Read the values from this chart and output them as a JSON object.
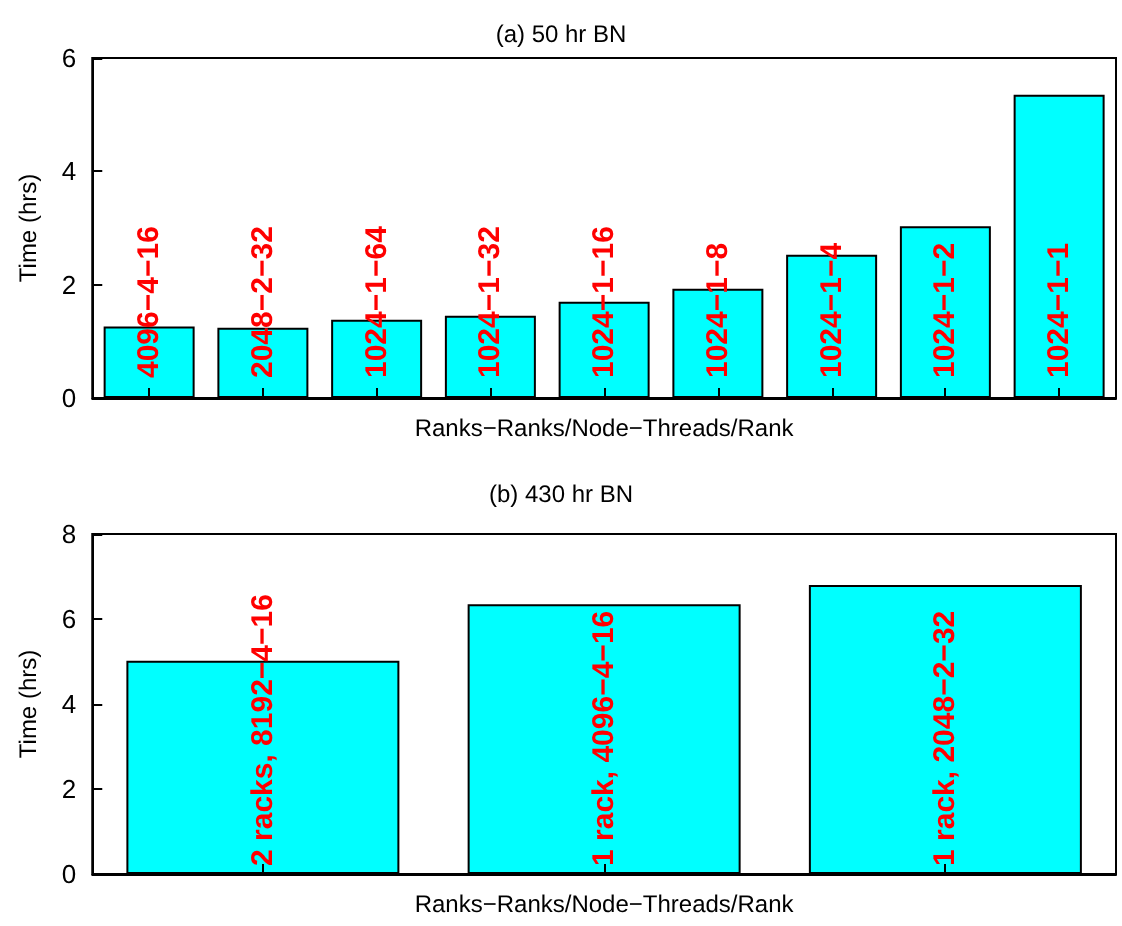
{
  "chart_data": [
    {
      "type": "bar",
      "title": "(a) 50 hr BN",
      "xlabel": "Ranks−Ranks/Node−Threads/Rank",
      "ylabel": "Time (hrs)",
      "categories": [
        "4096−4−16",
        "2048−2−32",
        "1024−1−64",
        "1024−1−32",
        "1024−1−16",
        "1024−1−8",
        "1024−1−4",
        "1024−1−2",
        "1024−1−1"
      ],
      "values": [
        1.26,
        1.24,
        1.38,
        1.45,
        1.7,
        1.93,
        2.53,
        3.03,
        5.35
      ],
      "color": "#00ffff",
      "ylim": [
        0,
        6
      ],
      "yticks": [
        0,
        2,
        4,
        6
      ]
    },
    {
      "type": "bar",
      "title": "(b) 430 hr BN",
      "xlabel": "Ranks−Ranks/Node−Threads/Rank",
      "ylabel": "Time (hrs)",
      "categories": [
        "2 racks, 8192−4−16",
        "1 rack, 4096−4−16",
        "1 rack, 2048−2−32"
      ],
      "values": [
        5.02,
        6.35,
        6.8
      ],
      "color": "#00ffff",
      "ylim": [
        0,
        8
      ],
      "yticks": [
        0,
        2,
        4,
        6,
        8
      ]
    }
  ]
}
